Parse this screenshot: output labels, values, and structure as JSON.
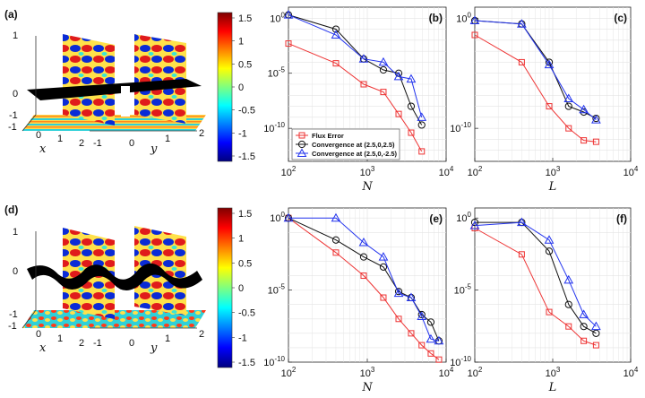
{
  "figure": {
    "surface_panels": [
      {
        "label": "(a)",
        "z_ticks": [
          "1",
          "0",
          "-1"
        ],
        "x_ticks": [
          "0",
          "1",
          "2"
        ],
        "y_ticks": [
          "-1",
          "0",
          "1",
          "2"
        ],
        "xlabel": "x",
        "ylabel": "y",
        "cut_gap_ticks": [
          "-1"
        ],
        "style": "flat"
      },
      {
        "label": "(d)",
        "z_ticks": [
          "1",
          "0",
          "-1"
        ],
        "x_ticks": [
          "0",
          "1",
          "2"
        ],
        "y_ticks": [
          "-1",
          "0",
          "1",
          "2"
        ],
        "xlabel": "x",
        "ylabel": "y",
        "cut_gap_ticks": [
          "-1"
        ],
        "style": "wavy"
      }
    ],
    "colorbar": {
      "ticks": [
        "1.5",
        "1",
        "0.5",
        "0",
        "-0.5",
        "-1",
        "-1.5"
      ],
      "range": [
        -1.5,
        1.5
      ]
    },
    "legend": [
      "Flux Error",
      "Convergence at (2.5,0,2.5)",
      "Convergence at (2.5,0,-2.5)"
    ],
    "colors": {
      "red": "#ee3333",
      "black": "#111111",
      "blue": "#2233ee"
    }
  },
  "chart_data": [
    {
      "panel": "(b)",
      "type": "line",
      "xscale": "log",
      "yscale": "log",
      "xlabel": "N",
      "ylabel": "",
      "xlim": [
        100,
        10000
      ],
      "ylim": [
        1e-13,
        10
      ],
      "x_ticks": [
        "10^2",
        "10^3",
        "10^4"
      ],
      "y_ticks": [
        "10^0",
        "10^-5",
        "10^-10"
      ],
      "show_x_title": true,
      "legend": true,
      "series": [
        {
          "name": "Flux Error",
          "color": "red",
          "marker": "square",
          "x": [
            100,
            400,
            900,
            1600,
            2500,
            3600,
            4900
          ],
          "y": [
            0.005,
            8e-05,
            1e-06,
            2e-07,
            2e-09,
            4e-11,
            8e-13
          ]
        },
        {
          "name": "Convergence at (2.5,0,2.5)",
          "color": "black",
          "marker": "circle",
          "x": [
            100,
            400,
            900,
            1600,
            2500,
            3600,
            4900
          ],
          "y": [
            2,
            0.1,
            0.0002,
            2e-05,
            1e-05,
            1e-08,
            2e-10
          ]
        },
        {
          "name": "Convergence at (2.5,0,-2.5)",
          "color": "blue",
          "marker": "triangle",
          "x": [
            100,
            400,
            900,
            1600,
            2500,
            3600,
            4900
          ],
          "y": [
            2,
            0.03,
            0.0002,
            0.0001,
            5e-06,
            3e-06,
            1e-09
          ]
        }
      ]
    },
    {
      "panel": "(c)",
      "type": "line",
      "xscale": "log",
      "yscale": "log",
      "xlabel": "L",
      "ylabel": "",
      "xlim": [
        100,
        10000
      ],
      "ylim": [
        1e-13,
        10
      ],
      "x_ticks": [
        "10^2",
        "10^3",
        "10^4"
      ],
      "y_ticks": [
        "10^0",
        "10^-10"
      ],
      "show_x_title": true,
      "legend": false,
      "series": [
        {
          "name": "Flux Error",
          "color": "red",
          "marker": "square",
          "x": [
            100,
            400,
            900,
            1600,
            2500,
            3600
          ],
          "y": [
            0.03,
            0.0001,
            1e-08,
            1e-10,
            8e-12,
            6e-12
          ]
        },
        {
          "name": "Convergence at (2.5,0,2.5)",
          "color": "black",
          "marker": "circle",
          "x": [
            100,
            400,
            900,
            1600,
            2500,
            3600
          ],
          "y": [
            0.6,
            0.3,
            0.0001,
            1e-08,
            3e-09,
            8e-10
          ]
        },
        {
          "name": "Convergence at (2.5,0,-2.5)",
          "color": "blue",
          "marker": "triangle",
          "x": [
            100,
            400,
            900,
            1600,
            2500,
            3600
          ],
          "y": [
            0.6,
            0.3,
            6e-05,
            5e-08,
            5e-09,
            6e-10
          ]
        }
      ]
    },
    {
      "panel": "(e)",
      "type": "line",
      "xscale": "log",
      "yscale": "log",
      "xlabel": "N",
      "ylabel": "",
      "xlim": [
        100,
        10000
      ],
      "ylim": [
        1e-10,
        5
      ],
      "x_ticks": [
        "10^2",
        "10^3",
        "10^4"
      ],
      "y_ticks": [
        "10^0",
        "10^-5",
        "10^-10"
      ],
      "show_x_title": true,
      "legend": false,
      "series": [
        {
          "name": "Flux Error",
          "color": "red",
          "marker": "square",
          "x": [
            100,
            400,
            900,
            1600,
            2500,
            3600,
            4900,
            6400,
            8100
          ],
          "y": [
            1,
            0.004,
            0.0001,
            3e-06,
            1e-07,
            1e-08,
            1.5e-09,
            4e-10,
            1.5e-10
          ]
        },
        {
          "name": "Convergence at (2.5,0,2.5)",
          "color": "black",
          "marker": "circle",
          "x": [
            100,
            400,
            900,
            1600,
            2500,
            3600,
            4900,
            6400,
            8100
          ],
          "y": [
            1,
            0.03,
            0.002,
            0.0004,
            8e-06,
            3e-06,
            2e-07,
            6e-08,
            3e-09
          ]
        },
        {
          "name": "Convergence at (2.5,0,-2.5)",
          "color": "blue",
          "marker": "triangle",
          "x": [
            100,
            400,
            900,
            1600,
            2500,
            3600,
            4900,
            6400,
            8100
          ],
          "y": [
            1,
            1,
            0.02,
            0.002,
            6e-06,
            3e-06,
            1.5e-07,
            4e-09,
            3e-09
          ]
        }
      ]
    },
    {
      "panel": "(f)",
      "type": "line",
      "xscale": "log",
      "yscale": "log",
      "xlabel": "L",
      "ylabel": "",
      "xlim": [
        100,
        10000
      ],
      "ylim": [
        1e-10,
        5
      ],
      "x_ticks": [
        "10^2",
        "10^3",
        "10^4"
      ],
      "y_ticks": [
        "10^0",
        "10^-5",
        "10^-10"
      ],
      "show_x_title": true,
      "legend": false,
      "series": [
        {
          "name": "Flux Error",
          "color": "red",
          "marker": "square",
          "x": [
            100,
            400,
            900,
            1600,
            2500,
            3600
          ],
          "y": [
            0.2,
            0.003,
            3e-07,
            3e-08,
            3e-09,
            1.5e-09
          ]
        },
        {
          "name": "Convergence at (2.5,0,2.5)",
          "color": "black",
          "marker": "circle",
          "x": [
            100,
            400,
            900,
            1600,
            2500,
            3600
          ],
          "y": [
            0.5,
            0.5,
            0.005,
            1e-06,
            3e-08,
            1e-08
          ]
        },
        {
          "name": "Convergence at (2.5,0,-2.5)",
          "color": "blue",
          "marker": "triangle",
          "x": [
            100,
            400,
            900,
            1600,
            2500,
            3600
          ],
          "y": [
            0.3,
            0.5,
            0.03,
            5e-05,
            2e-07,
            3e-08
          ]
        }
      ]
    }
  ]
}
